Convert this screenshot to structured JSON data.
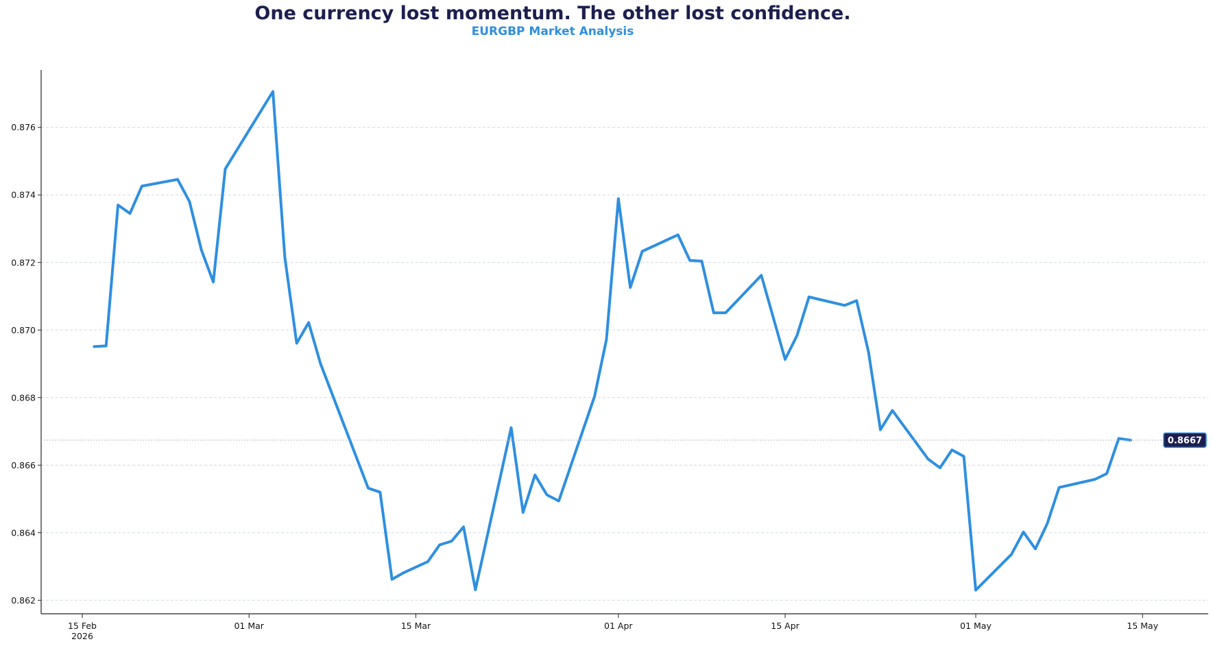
{
  "chart_data": {
    "type": "line",
    "title": "One currency lost momentum. The other lost confidence.",
    "subtitle": "EURGBP Market Analysis",
    "xlabel": "",
    "ylabel": "",
    "x_range": [
      "2026-02-15",
      "2026-05-17"
    ],
    "ylim": [
      0.8616,
      0.8777
    ],
    "y_ticks": [
      "0.862",
      "0.864",
      "0.866",
      "0.868",
      "0.870",
      "0.872",
      "0.874",
      "0.876"
    ],
    "y_tick_values": [
      0.862,
      0.864,
      0.866,
      0.868,
      0.87,
      0.872,
      0.874,
      0.876
    ],
    "x_ticks": [
      {
        "date": "2026-02-15",
        "label": "15 Feb",
        "sublabel": "2026"
      },
      {
        "date": "2026-03-01",
        "label": "01 Mar",
        "sublabel": ""
      },
      {
        "date": "2026-03-15",
        "label": "15 Mar",
        "sublabel": ""
      },
      {
        "date": "2026-04-01",
        "label": "01 Apr",
        "sublabel": ""
      },
      {
        "date": "2026-04-15",
        "label": "15 Apr",
        "sublabel": ""
      },
      {
        "date": "2026-05-01",
        "label": "01 May",
        "sublabel": ""
      },
      {
        "date": "2026-05-15",
        "label": "15 May",
        "sublabel": ""
      }
    ],
    "grid": "horizontal-dashed",
    "line_color": "#2e8fe0",
    "last_value_label": "0.8667",
    "series": [
      {
        "points": [
          [
            "2026-02-16",
            0.86951
          ],
          [
            "2026-02-17",
            0.86953
          ],
          [
            "2026-02-18",
            0.8737
          ],
          [
            "2026-02-19",
            0.87345
          ],
          [
            "2026-02-20",
            0.87426
          ],
          [
            "2026-02-23",
            0.87446
          ],
          [
            "2026-02-24",
            0.8738
          ],
          [
            "2026-02-25",
            0.87237
          ],
          [
            "2026-02-26",
            0.87142
          ],
          [
            "2026-02-27",
            0.87477
          ],
          [
            "2026-03-03",
            0.87706
          ],
          [
            "2026-03-04",
            0.87215
          ],
          [
            "2026-03-05",
            0.86961
          ],
          [
            "2026-03-06",
            0.87022
          ],
          [
            "2026-03-07",
            0.869
          ],
          [
            "2026-03-11",
            0.86532
          ],
          [
            "2026-03-12",
            0.8652
          ],
          [
            "2026-03-13",
            0.86262
          ],
          [
            "2026-03-14",
            0.86282
          ],
          [
            "2026-03-16",
            0.86314
          ],
          [
            "2026-03-17",
            0.86364
          ],
          [
            "2026-03-18",
            0.86375
          ],
          [
            "2026-03-19",
            0.86417
          ],
          [
            "2026-03-20",
            0.86231
          ],
          [
            "2026-03-23",
            0.86711
          ],
          [
            "2026-03-24",
            0.8646
          ],
          [
            "2026-03-25",
            0.86571
          ],
          [
            "2026-03-26",
            0.86512
          ],
          [
            "2026-03-27",
            0.86494
          ],
          [
            "2026-03-30",
            0.86804
          ],
          [
            "2026-03-31",
            0.86972
          ],
          [
            "2026-04-01",
            0.87389
          ],
          [
            "2026-04-02",
            0.87126
          ],
          [
            "2026-04-03",
            0.87233
          ],
          [
            "2026-04-06",
            0.87282
          ],
          [
            "2026-04-07",
            0.87206
          ],
          [
            "2026-04-08",
            0.87204
          ],
          [
            "2026-04-09",
            0.87051
          ],
          [
            "2026-04-10",
            0.87051
          ],
          [
            "2026-04-13",
            0.87162
          ],
          [
            "2026-04-15",
            0.86913
          ],
          [
            "2026-04-16",
            0.86984
          ],
          [
            "2026-04-17",
            0.87098
          ],
          [
            "2026-04-20",
            0.87073
          ],
          [
            "2026-04-21",
            0.87087
          ],
          [
            "2026-04-22",
            0.86934
          ],
          [
            "2026-04-23",
            0.86705
          ],
          [
            "2026-04-24",
            0.86762
          ],
          [
            "2026-04-27",
            0.86618
          ],
          [
            "2026-04-28",
            0.86592
          ],
          [
            "2026-04-29",
            0.86645
          ],
          [
            "2026-04-30",
            0.86626
          ],
          [
            "2026-05-01",
            0.8623
          ],
          [
            "2026-05-04",
            0.86336
          ],
          [
            "2026-05-05",
            0.86402
          ],
          [
            "2026-05-06",
            0.86352
          ],
          [
            "2026-05-07",
            0.86427
          ],
          [
            "2026-05-08",
            0.86534
          ],
          [
            "2026-05-11",
            0.86558
          ],
          [
            "2026-05-12",
            0.86575
          ],
          [
            "2026-05-13",
            0.86679
          ],
          [
            "2026-05-14",
            0.86674
          ]
        ]
      }
    ]
  }
}
